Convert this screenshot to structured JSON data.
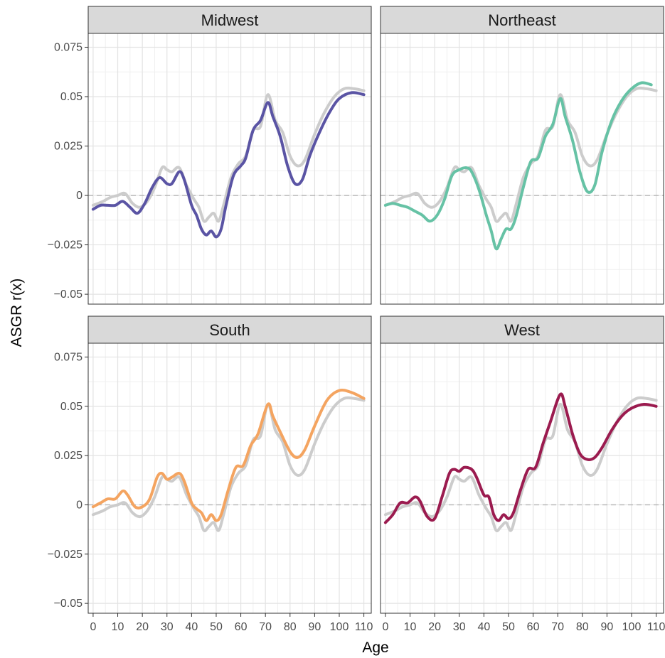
{
  "chart_data": {
    "type": "line",
    "xlabel": "Age",
    "ylabel": "ASGR r(x)",
    "xlim": [
      -2,
      113
    ],
    "ylim": [
      -0.055,
      0.082
    ],
    "x_ticks": [
      0,
      10,
      20,
      30,
      40,
      50,
      60,
      70,
      80,
      90,
      100,
      110
    ],
    "x_tick_labels": [
      "0",
      "10",
      "20",
      "30",
      "40",
      "50",
      "60",
      "70",
      "80",
      "90",
      "100",
      "110"
    ],
    "y_ticks": [
      -0.05,
      -0.025,
      0,
      0.025,
      0.05,
      0.075
    ],
    "y_tick_labels": [
      "−0.05",
      "−0.025",
      "0",
      "0.025",
      "0.05",
      "0.075"
    ],
    "reference_line": {
      "y": 0,
      "style": "dashed",
      "color": "#b3b3b3"
    },
    "grid": true,
    "national_series": {
      "color": "#cccccc",
      "points": [
        [
          0,
          -0.005
        ],
        [
          4,
          -0.003
        ],
        [
          7,
          -0.001
        ],
        [
          10,
          0.0
        ],
        [
          13,
          0.001
        ],
        [
          16,
          -0.004
        ],
        [
          19,
          -0.006
        ],
        [
          22,
          -0.003
        ],
        [
          25,
          0.004
        ],
        [
          28,
          0.014
        ],
        [
          30,
          0.013
        ],
        [
          32,
          0.012
        ],
        [
          35,
          0.014
        ],
        [
          38,
          0.005
        ],
        [
          41,
          -0.002
        ],
        [
          43,
          -0.006
        ],
        [
          45,
          -0.013
        ],
        [
          47,
          -0.011
        ],
        [
          49,
          -0.009
        ],
        [
          51,
          -0.013
        ],
        [
          53,
          -0.005
        ],
        [
          56,
          0.009
        ],
        [
          59,
          0.016
        ],
        [
          62,
          0.02
        ],
        [
          65,
          0.033
        ],
        [
          68,
          0.035
        ],
        [
          71,
          0.051
        ],
        [
          74,
          0.038
        ],
        [
          77,
          0.032
        ],
        [
          80,
          0.02
        ],
        [
          83,
          0.015
        ],
        [
          86,
          0.018
        ],
        [
          90,
          0.031
        ],
        [
          94,
          0.042
        ],
        [
          98,
          0.05
        ],
        [
          102,
          0.054
        ],
        [
          106,
          0.054
        ],
        [
          110,
          0.053
        ]
      ]
    },
    "panels": [
      {
        "title": "Midwest",
        "color": "#5a54a4",
        "points": [
          [
            0,
            -0.007
          ],
          [
            3,
            -0.005
          ],
          [
            6,
            -0.005
          ],
          [
            9,
            -0.005
          ],
          [
            12,
            -0.003
          ],
          [
            15,
            -0.006
          ],
          [
            18,
            -0.009
          ],
          [
            21,
            -0.004
          ],
          [
            24,
            0.004
          ],
          [
            27,
            0.009
          ],
          [
            30,
            0.006
          ],
          [
            32,
            0.006
          ],
          [
            35,
            0.012
          ],
          [
            37,
            0.008
          ],
          [
            40,
            -0.005
          ],
          [
            42,
            -0.01
          ],
          [
            44,
            -0.017
          ],
          [
            46,
            -0.02
          ],
          [
            48,
            -0.018
          ],
          [
            50,
            -0.021
          ],
          [
            52,
            -0.017
          ],
          [
            54,
            -0.005
          ],
          [
            57,
            0.01
          ],
          [
            60,
            0.015
          ],
          [
            62,
            0.019
          ],
          [
            65,
            0.033
          ],
          [
            68,
            0.038
          ],
          [
            71,
            0.047
          ],
          [
            73,
            0.04
          ],
          [
            76,
            0.03
          ],
          [
            79,
            0.015
          ],
          [
            82,
            0.006
          ],
          [
            85,
            0.008
          ],
          [
            88,
            0.02
          ],
          [
            92,
            0.032
          ],
          [
            96,
            0.042
          ],
          [
            100,
            0.049
          ],
          [
            105,
            0.052
          ],
          [
            110,
            0.051
          ]
        ]
      },
      {
        "title": "Northeast",
        "color": "#66c2a5",
        "points": [
          [
            0,
            -0.005
          ],
          [
            3,
            -0.004
          ],
          [
            6,
            -0.005
          ],
          [
            9,
            -0.006
          ],
          [
            12,
            -0.008
          ],
          [
            15,
            -0.01
          ],
          [
            18,
            -0.013
          ],
          [
            21,
            -0.01
          ],
          [
            24,
            -0.002
          ],
          [
            27,
            0.01
          ],
          [
            30,
            0.013
          ],
          [
            33,
            0.014
          ],
          [
            35,
            0.012
          ],
          [
            38,
            0.003
          ],
          [
            41,
            -0.01
          ],
          [
            43,
            -0.018
          ],
          [
            45,
            -0.027
          ],
          [
            47,
            -0.022
          ],
          [
            49,
            -0.017
          ],
          [
            51,
            -0.017
          ],
          [
            53,
            -0.011
          ],
          [
            56,
            0.004
          ],
          [
            59,
            0.017
          ],
          [
            62,
            0.019
          ],
          [
            65,
            0.03
          ],
          [
            68,
            0.036
          ],
          [
            71,
            0.049
          ],
          [
            73,
            0.04
          ],
          [
            76,
            0.028
          ],
          [
            79,
            0.012
          ],
          [
            82,
            0.002
          ],
          [
            85,
            0.005
          ],
          [
            88,
            0.022
          ],
          [
            92,
            0.038
          ],
          [
            96,
            0.048
          ],
          [
            100,
            0.054
          ],
          [
            104,
            0.057
          ],
          [
            108,
            0.056
          ]
        ]
      },
      {
        "title": "South",
        "color": "#f4a460",
        "points": [
          [
            0,
            -0.001
          ],
          [
            3,
            0.001
          ],
          [
            6,
            0.003
          ],
          [
            9,
            0.003
          ],
          [
            12,
            0.007
          ],
          [
            14,
            0.005
          ],
          [
            17,
            -0.001
          ],
          [
            20,
            -0.001
          ],
          [
            23,
            0.003
          ],
          [
            26,
            0.014
          ],
          [
            28,
            0.016
          ],
          [
            30,
            0.013
          ],
          [
            32,
            0.014
          ],
          [
            35,
            0.016
          ],
          [
            37,
            0.012
          ],
          [
            40,
            0.001
          ],
          [
            42,
            -0.002
          ],
          [
            44,
            -0.004
          ],
          [
            46,
            -0.008
          ],
          [
            48,
            -0.005
          ],
          [
            50,
            -0.008
          ],
          [
            52,
            -0.005
          ],
          [
            55,
            0.008
          ],
          [
            58,
            0.019
          ],
          [
            61,
            0.02
          ],
          [
            64,
            0.03
          ],
          [
            67,
            0.036
          ],
          [
            71,
            0.051
          ],
          [
            73,
            0.045
          ],
          [
            76,
            0.037
          ],
          [
            80,
            0.027
          ],
          [
            83,
            0.024
          ],
          [
            86,
            0.028
          ],
          [
            90,
            0.04
          ],
          [
            95,
            0.053
          ],
          [
            100,
            0.058
          ],
          [
            105,
            0.057
          ],
          [
            110,
            0.054
          ]
        ]
      },
      {
        "title": "West",
        "color": "#9b1b4f",
        "points": [
          [
            0,
            -0.009
          ],
          [
            3,
            -0.005
          ],
          [
            6,
            0.001
          ],
          [
            9,
            0.001
          ],
          [
            12,
            0.004
          ],
          [
            14,
            0.002
          ],
          [
            17,
            -0.006
          ],
          [
            20,
            -0.007
          ],
          [
            23,
            0.004
          ],
          [
            26,
            0.016
          ],
          [
            28,
            0.018
          ],
          [
            30,
            0.017
          ],
          [
            32,
            0.019
          ],
          [
            35,
            0.018
          ],
          [
            37,
            0.014
          ],
          [
            40,
            0.005
          ],
          [
            42,
            0.004
          ],
          [
            44,
            -0.005
          ],
          [
            46,
            -0.008
          ],
          [
            48,
            -0.005
          ],
          [
            50,
            -0.007
          ],
          [
            52,
            -0.004
          ],
          [
            55,
            0.008
          ],
          [
            58,
            0.018
          ],
          [
            61,
            0.019
          ],
          [
            64,
            0.031
          ],
          [
            67,
            0.042
          ],
          [
            71,
            0.056
          ],
          [
            73,
            0.05
          ],
          [
            76,
            0.036
          ],
          [
            79,
            0.026
          ],
          [
            82,
            0.023
          ],
          [
            85,
            0.024
          ],
          [
            88,
            0.029
          ],
          [
            92,
            0.038
          ],
          [
            96,
            0.045
          ],
          [
            100,
            0.049
          ],
          [
            105,
            0.051
          ],
          [
            110,
            0.05
          ]
        ]
      }
    ]
  }
}
